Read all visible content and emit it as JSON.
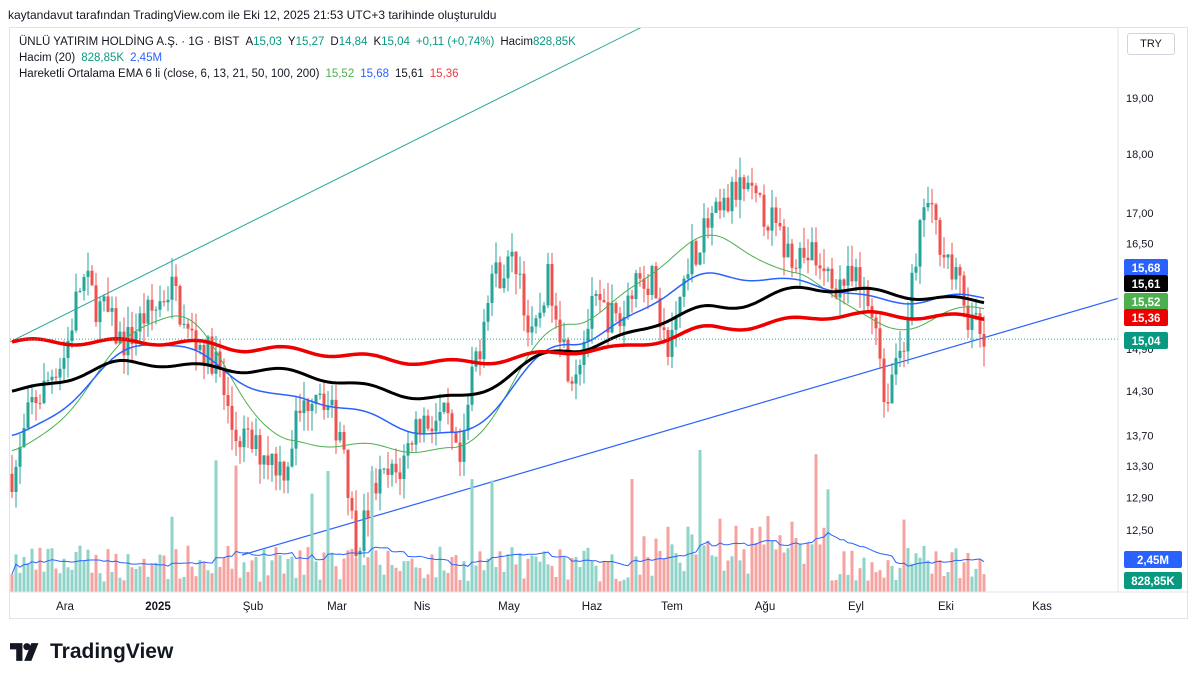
{
  "header_note": "kaytandavut tarafından TradingView.com ile Eki 12, 2025 21:53 UTC+3 tarihinde oluşturuldu",
  "legend": {
    "symbol": "ÜNLÜ YATIRIM HOLDİNG A.Ş. · 1G · BIST",
    "open_label": "A",
    "open": "15,03",
    "high_label": "Y",
    "high": "15,27",
    "low_label": "D",
    "low": "14,84",
    "close_label": "K",
    "close": "15,04",
    "change": "+0,11 (+0,74%)",
    "volume_label": "Hacim",
    "volume": "828,85K",
    "vol_ind_name": "Hacim (20)",
    "vol_ind_v1": "828,85K",
    "vol_ind_v2": "2,45M",
    "ema_name": "Hareketli Ortalama EMA 6 li (close, 6, 13, 21, 50, 100, 200)",
    "ema_v1": "15,52",
    "ema_v2": "15,68",
    "ema_v3": "15,61",
    "ema_v4": "15,36"
  },
  "currency_button": "TRY",
  "brand": "TradingView",
  "colors": {
    "up": "#26a69a",
    "down": "#ef5350",
    "vol_up": "#8fd3c9",
    "vol_down": "#f5a3a1",
    "ema_green": "#4caf50",
    "ema_blue": "#2962ff",
    "ema_black": "#000000",
    "ema_red": "#ef0000",
    "channel_upper": "#26a69a",
    "channel_lower": "#2962ff"
  },
  "chart_data": {
    "type": "candlestick",
    "y_scale": "log",
    "y_ticks": [
      "19,00",
      "18,00",
      "17,00",
      "16,50",
      "14,90",
      "14,30",
      "13,70",
      "13,30",
      "12,90",
      "12,50"
    ],
    "y_tick_values": [
      19.0,
      18.0,
      17.0,
      16.5,
      14.9,
      14.3,
      13.7,
      13.3,
      12.9,
      12.5
    ],
    "x_ticks": [
      "Ara",
      "2025",
      "Şub",
      "Mar",
      "Nis",
      "May",
      "Haz",
      "Tem",
      "Ağu",
      "Eyl",
      "Eki",
      "Kas"
    ],
    "last_price": 15.04,
    "price_labels": [
      {
        "text": "15,68",
        "value": 15.68,
        "color": "#2962ff"
      },
      {
        "text": "15,61",
        "value": 15.61,
        "color": "#000000"
      },
      {
        "text": "15,52",
        "value": 15.52,
        "color": "#4caf50"
      },
      {
        "text": "15,36",
        "value": 15.36,
        "color": "#ef0000"
      },
      {
        "text": "15,04",
        "value": 15.04,
        "color": "#089981"
      }
    ],
    "volume_labels": [
      {
        "text": "2,45M",
        "color": "#2962ff"
      },
      {
        "text": "828,85K",
        "color": "#089981"
      }
    ],
    "close_anchors": [
      [
        0,
        13.2
      ],
      [
        6,
        14.2
      ],
      [
        12,
        14.7
      ],
      [
        18,
        15.9
      ],
      [
        22,
        15.5
      ],
      [
        28,
        15.0
      ],
      [
        34,
        15.4
      ],
      [
        40,
        15.8
      ],
      [
        44,
        15.1
      ],
      [
        50,
        14.8
      ],
      [
        56,
        13.7
      ],
      [
        62,
        13.5
      ],
      [
        68,
        13.3
      ],
      [
        72,
        14.0
      ],
      [
        76,
        14.4
      ],
      [
        82,
        13.8
      ],
      [
        86,
        12.4
      ],
      [
        92,
        13.1
      ],
      [
        96,
        13.2
      ],
      [
        102,
        13.9
      ],
      [
        108,
        13.9
      ],
      [
        112,
        13.3
      ],
      [
        116,
        14.8
      ],
      [
        120,
        16.0
      ],
      [
        126,
        16.2
      ],
      [
        130,
        15.0
      ],
      [
        134,
        15.9
      ],
      [
        140,
        14.6
      ],
      [
        146,
        15.5
      ],
      [
        152,
        15.3
      ],
      [
        156,
        16.0
      ],
      [
        160,
        15.9
      ],
      [
        164,
        14.9
      ],
      [
        170,
        16.4
      ],
      [
        176,
        16.9
      ],
      [
        182,
        17.4
      ],
      [
        188,
        17.0
      ],
      [
        194,
        16.4
      ],
      [
        200,
        16.3
      ],
      [
        204,
        15.9
      ],
      [
        210,
        15.9
      ],
      [
        216,
        15.4
      ],
      [
        218,
        14.2
      ],
      [
        222,
        14.9
      ],
      [
        226,
        16.0
      ],
      [
        228,
        17.2
      ],
      [
        232,
        16.6
      ],
      [
        236,
        15.9
      ],
      [
        240,
        15.3
      ],
      [
        243,
        15.04
      ]
    ],
    "ema_fast_anchors": [
      [
        0,
        13.5
      ],
      [
        40,
        15.4
      ],
      [
        70,
        13.6
      ],
      [
        110,
        13.5
      ],
      [
        140,
        15.3
      ],
      [
        176,
        16.6
      ],
      [
        196,
        16.0
      ],
      [
        220,
        15.2
      ],
      [
        243,
        15.52
      ]
    ],
    "ema_mid_anchors": [
      [
        0,
        13.7
      ],
      [
        36,
        15.0
      ],
      [
        70,
        14.2
      ],
      [
        110,
        13.7
      ],
      [
        140,
        15.0
      ],
      [
        176,
        16.0
      ],
      [
        196,
        15.9
      ],
      [
        220,
        15.6
      ],
      [
        243,
        15.68
      ]
    ],
    "ema_slow_anchors": [
      [
        0,
        14.3
      ],
      [
        30,
        14.7
      ],
      [
        60,
        14.6
      ],
      [
        110,
        14.2
      ],
      [
        140,
        14.9
      ],
      [
        176,
        15.5
      ],
      [
        200,
        15.8
      ],
      [
        243,
        15.61
      ]
    ],
    "ema_long_anchors": [
      [
        0,
        15.0
      ],
      [
        40,
        15.0
      ],
      [
        60,
        14.9
      ],
      [
        110,
        14.7
      ],
      [
        150,
        14.9
      ],
      [
        176,
        15.2
      ],
      [
        210,
        15.4
      ],
      [
        243,
        15.36
      ]
    ],
    "channel_upper": {
      "start": [
        0,
        15.0
      ],
      "end": [
        254,
        24.5
      ]
    },
    "channel_lower": {
      "start": [
        58,
        12.2
      ],
      "end": [
        280,
        15.7
      ]
    },
    "num_bars": 244,
    "volume_max_m": 5.5
  }
}
